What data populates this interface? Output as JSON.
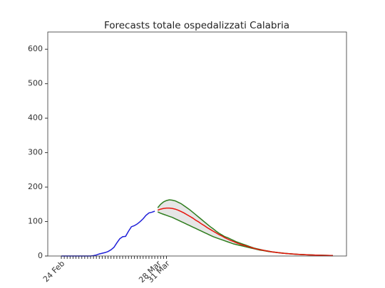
{
  "chart_data": {
    "type": "line",
    "title": "Forecasts totale ospedalizzati Calabria",
    "categories": [
      "24 Feb",
      null,
      null,
      null,
      null,
      null,
      null,
      null,
      null,
      null,
      null,
      null,
      null,
      null,
      null,
      null,
      null,
      null,
      null,
      null,
      null,
      null,
      null,
      null,
      null,
      null,
      null,
      null,
      null,
      null,
      null,
      null,
      null,
      "28 Mar",
      null,
      null,
      "31 Mar",
      null,
      null,
      null,
      null,
      null,
      null,
      null,
      null,
      null,
      null,
      null,
      null,
      null,
      null,
      null,
      null,
      null,
      null,
      null,
      null,
      null,
      null,
      null,
      null,
      null,
      null,
      null,
      null,
      null,
      null,
      null,
      null,
      null,
      null,
      null,
      null,
      null,
      null,
      null,
      null,
      null,
      null,
      null,
      null,
      null,
      null,
      null,
      null,
      null,
      null,
      null,
      null,
      null,
      null,
      null,
      null,
      null
    ],
    "ylim": [
      0,
      650
    ],
    "yticks": [
      0,
      100,
      200,
      300,
      400,
      500,
      600
    ],
    "series": [
      {
        "color": "#1f1fd8",
        "values": [
          0,
          0,
          0,
          0,
          0,
          0,
          0,
          0,
          0,
          0,
          0,
          1,
          3,
          6,
          8,
          10,
          13,
          18,
          25,
          38,
          50,
          56,
          57,
          72,
          85,
          88,
          93,
          100,
          108,
          118,
          125,
          127,
          130,
          null,
          null,
          null,
          null,
          null,
          null,
          null,
          null,
          null,
          null,
          null,
          null,
          null,
          null,
          null,
          null,
          null,
          null,
          null,
          null,
          null,
          null,
          null,
          null,
          null,
          null,
          null,
          null,
          null,
          null,
          null,
          null,
          null,
          null,
          null,
          null,
          null,
          null,
          null,
          null,
          null,
          null,
          null,
          null,
          null,
          null,
          null,
          null,
          null,
          null,
          null,
          null,
          null,
          null,
          null,
          null,
          null,
          null,
          null,
          null,
          null
        ]
      },
      {
        "color": "#e8140c",
        "band_color": "#e6e6e6",
        "band_edge_color": "#2e7d1e",
        "values": [
          null,
          null,
          null,
          null,
          null,
          null,
          null,
          null,
          null,
          null,
          null,
          null,
          null,
          null,
          null,
          null,
          null,
          null,
          null,
          null,
          null,
          null,
          null,
          null,
          null,
          null,
          null,
          null,
          null,
          null,
          null,
          null,
          null,
          133,
          136,
          138,
          139,
          139,
          138,
          136,
          133,
          129,
          125,
          120,
          115,
          110,
          104,
          99,
          93,
          88,
          82,
          77,
          72,
          67,
          62,
          58,
          53,
          49,
          45,
          42,
          38,
          35,
          32,
          30,
          27,
          25,
          22,
          20,
          18,
          17,
          15,
          14,
          12,
          11,
          10,
          9,
          8,
          7.3,
          6.6,
          6,
          5.3,
          4.8,
          4.3,
          3.9,
          3.5,
          3.2,
          2.9,
          2.6,
          2.3,
          2.1,
          1.9,
          1.7,
          1.5,
          1.3
        ],
        "upper": [
          null,
          null,
          null,
          null,
          null,
          null,
          null,
          null,
          null,
          null,
          null,
          null,
          null,
          null,
          null,
          null,
          null,
          null,
          null,
          null,
          null,
          null,
          null,
          null,
          null,
          null,
          null,
          null,
          null,
          null,
          null,
          null,
          null,
          140,
          150,
          157,
          161,
          163,
          162,
          160,
          156,
          152,
          146,
          140,
          134,
          127,
          120,
          113,
          106,
          99,
          92,
          85,
          79,
          72,
          66,
          61,
          56,
          53,
          49,
          45,
          41,
          38,
          35,
          32,
          29,
          26,
          23,
          21,
          19,
          17,
          15.5,
          14,
          12.5,
          11.3,
          10.2,
          9.2,
          8.3,
          7.5,
          6.8,
          6.1,
          5.5,
          5,
          4.5,
          4,
          3.6,
          3.3,
          3,
          2.7,
          2.4,
          2.2,
          2,
          1.8,
          1.6,
          1.4
        ],
        "lower": [
          null,
          null,
          null,
          null,
          null,
          null,
          null,
          null,
          null,
          null,
          null,
          null,
          null,
          null,
          null,
          null,
          null,
          null,
          null,
          null,
          null,
          null,
          null,
          null,
          null,
          null,
          null,
          null,
          null,
          null,
          null,
          null,
          null,
          128,
          124,
          121,
          118,
          115,
          112,
          108,
          104,
          100,
          96,
          92,
          88,
          84,
          80,
          76,
          72,
          68,
          64,
          60,
          56,
          53,
          50,
          47,
          44,
          41,
          38,
          35,
          33,
          31,
          29,
          27,
          25,
          23,
          21,
          19,
          17,
          16,
          14.5,
          13,
          11.8,
          10.7,
          9.7,
          8.8,
          7.9,
          7.1,
          6.4,
          5.8,
          5.2,
          4.7,
          4.2,
          3.8,
          3.4,
          3.1,
          2.8,
          2.5,
          2.2,
          2,
          1.8,
          1.6,
          1.4,
          1.2
        ]
      }
    ]
  }
}
